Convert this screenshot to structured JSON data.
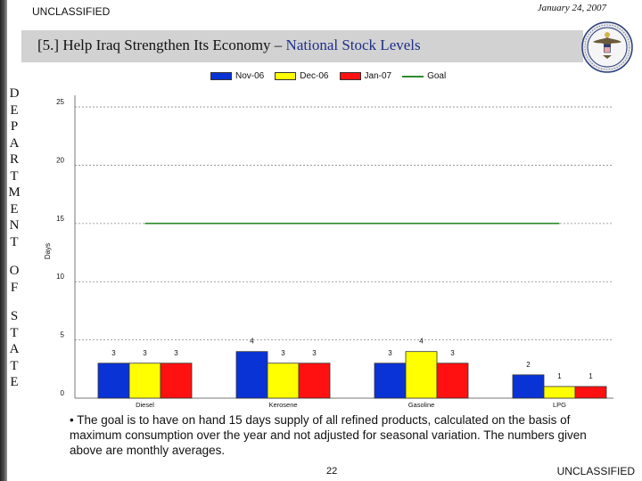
{
  "header": {
    "classification": "UNCLASSIFIED",
    "date": "January 24, 2007",
    "title_prefix": "[5.] Help Iraq Strengthen Its Economy – ",
    "title_accent": "National Stock Levels"
  },
  "sidebar": {
    "word1": [
      "D",
      "E",
      "P",
      "A",
      "R",
      "T",
      "M",
      "E",
      "N",
      "T"
    ],
    "word2": [
      "O",
      "F"
    ],
    "word3": [
      "S",
      "T",
      "A",
      "T",
      "E"
    ]
  },
  "colors": {
    "title_accent": "#1f2f8a",
    "nov06": "#0a33d6",
    "dec06": "#ffff00",
    "jan07": "#ff1111",
    "goal": "#2e8b2e"
  },
  "chart_data": {
    "type": "bar",
    "title": "",
    "xlabel": "",
    "ylabel": "Days",
    "ylim": [
      0,
      26
    ],
    "yticks": [
      0,
      5,
      10,
      15,
      20,
      25
    ],
    "grid": true,
    "legend_position": "top",
    "categories": [
      "Diesel",
      "Kerosene",
      "Gasoline",
      "LPG"
    ],
    "series": [
      {
        "name": "Nov-06",
        "values": [
          3,
          4,
          3,
          2
        ],
        "labels": [
          "3",
          "4",
          "3",
          "2"
        ]
      },
      {
        "name": "Dec-06",
        "values": [
          3,
          3,
          4,
          1
        ],
        "labels": [
          "3",
          "3",
          "4",
          "1"
        ]
      },
      {
        "name": "Jan-07",
        "values": [
          3,
          3,
          3,
          1
        ],
        "labels": [
          "3",
          "3",
          "3",
          "1"
        ]
      }
    ],
    "goal": {
      "name": "Goal",
      "value": 15
    }
  },
  "footer": {
    "note": "• The goal is to have on hand 15 days supply of all refined products, calculated on the basis of maximum consumption over the year and not adjusted for seasonal variation.  The numbers given above are monthly averages.",
    "page_number": "22",
    "classification": "UNCLASSIFIED"
  }
}
